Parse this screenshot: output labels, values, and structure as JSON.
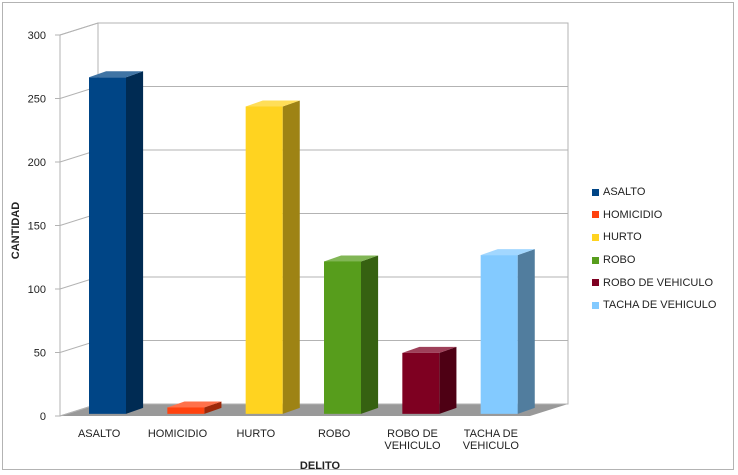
{
  "chart_data": {
    "type": "bar",
    "categories": [
      "ASALTO",
      "HOMICIDIO",
      "HURTO",
      "ROBO",
      "ROBO DE VEHICULO",
      "TACHA DE VEHICULO"
    ],
    "category_labels": [
      [
        "ASALTO"
      ],
      [
        "HOMICIDIO"
      ],
      [
        "HURTO"
      ],
      [
        "ROBO"
      ],
      [
        "ROBO DE",
        "VEHICULO"
      ],
      [
        "TACHA DE",
        "VEHICULO"
      ]
    ],
    "values": [
      265,
      5,
      242,
      120,
      48,
      125
    ],
    "colors": [
      "#004586",
      "#ff420e",
      "#ffd320",
      "#579d1c",
      "#7e0021",
      "#83caff"
    ],
    "xlabel": "DELITO",
    "ylabel": "CANTIDAD",
    "ylim": [
      0,
      300
    ],
    "yticks": [
      0,
      50,
      100,
      150,
      200,
      250,
      300
    ],
    "grid": true,
    "legend_position": "right",
    "style": "3d"
  }
}
